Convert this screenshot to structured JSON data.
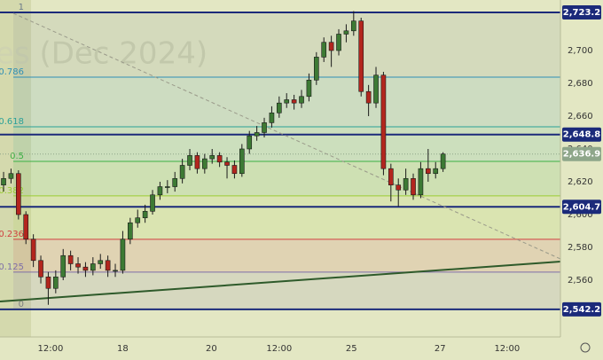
{
  "chart_data": {
    "type": "candlestick",
    "watermark": "es (Dec 2024)",
    "x": [
      0,
      1,
      2,
      3,
      4,
      5,
      6,
      7,
      8,
      9,
      10,
      11,
      12,
      13,
      14,
      15,
      16,
      17,
      18,
      19,
      20,
      21,
      22,
      23,
      24,
      25,
      26,
      27,
      28,
      29,
      30,
      31,
      32,
      33,
      34,
      35,
      36,
      37,
      38,
      39,
      40,
      41,
      42,
      43,
      44,
      45,
      46,
      47,
      48,
      49,
      50,
      51,
      52,
      53,
      54,
      55,
      56,
      57,
      58,
      59
    ],
    "open": [
      2618,
      2622,
      2625,
      2600,
      2585,
      2572,
      2562,
      2555,
      2562,
      2575,
      2570,
      2568,
      2566,
      2570,
      2572,
      2566,
      2566,
      2585,
      2595,
      2598,
      2602,
      2612,
      2617,
      2617,
      2622,
      2630,
      2636,
      2628,
      2634,
      2636,
      2632,
      2630,
      2625,
      2640,
      2648,
      2650,
      2656,
      2662,
      2668,
      2670,
      2668,
      2672,
      2682,
      2696,
      2705,
      2700,
      2710,
      2712,
      2718,
      2675,
      2668,
      2685,
      2628,
      2618,
      2615,
      2622,
      2612,
      2628,
      2625,
      2628
    ],
    "high": [
      2626,
      2628,
      2627,
      2602,
      2588,
      2575,
      2565,
      2566,
      2579,
      2578,
      2574,
      2571,
      2574,
      2576,
      2575,
      2570,
      2590,
      2598,
      2603,
      2606,
      2615,
      2620,
      2621,
      2626,
      2634,
      2640,
      2638,
      2637,
      2640,
      2638,
      2635,
      2633,
      2643,
      2651,
      2654,
      2659,
      2666,
      2672,
      2674,
      2673,
      2676,
      2686,
      2699,
      2708,
      2709,
      2713,
      2716,
      2724,
      2720,
      2679,
      2690,
      2687,
      2631,
      2622,
      2628,
      2625,
      2632,
      2640,
      2632,
      2638
    ],
    "low": [
      2614,
      2619,
      2597,
      2582,
      2568,
      2558,
      2545,
      2552,
      2560,
      2566,
      2564,
      2562,
      2563,
      2567,
      2562,
      2562,
      2564,
      2582,
      2592,
      2595,
      2600,
      2609,
      2613,
      2614,
      2619,
      2627,
      2625,
      2625,
      2631,
      2629,
      2622,
      2622,
      2623,
      2637,
      2645,
      2647,
      2653,
      2659,
      2665,
      2664,
      2665,
      2669,
      2679,
      2693,
      2690,
      2697,
      2705,
      2709,
      2672,
      2660,
      2665,
      2624,
      2608,
      2605,
      2612,
      2609,
      2610,
      2620,
      2622,
      2626
    ],
    "close": [
      2622,
      2625,
      2600,
      2585,
      2572,
      2562,
      2555,
      2562,
      2575,
      2570,
      2568,
      2566,
      2570,
      2572,
      2566,
      2566,
      2585,
      2595,
      2598,
      2602,
      2612,
      2617,
      2617,
      2622,
      2630,
      2636,
      2628,
      2634,
      2636,
      2632,
      2630,
      2625,
      2640,
      2648,
      2650,
      2656,
      2662,
      2668,
      2670,
      2668,
      2672,
      2682,
      2696,
      2705,
      2700,
      2710,
      2712,
      2718,
      2675,
      2668,
      2685,
      2628,
      2618,
      2615,
      2622,
      2612,
      2628,
      2625,
      2628,
      2636.9
    ],
    "up_color": "#3d7a34",
    "down_color": "#b3261e",
    "xlim": [
      -0.48,
      74.76
    ],
    "xticks": [
      {
        "value": 6.3,
        "label": "12:00"
      },
      {
        "value": 16,
        "label": "18"
      },
      {
        "value": 27.9,
        "label": "20"
      },
      {
        "value": 37,
        "label": "12:00"
      },
      {
        "value": 46.7,
        "label": "25"
      },
      {
        "value": 58.6,
        "label": "27"
      },
      {
        "value": 67.6,
        "label": "12:00"
      }
    ],
    "ylim": [
      2525.4,
      2730.8
    ],
    "yticks": [
      {
        "value": 2560,
        "label": "2,560"
      },
      {
        "value": 2580,
        "label": "2,580"
      },
      {
        "value": 2600,
        "label": "2,600"
      },
      {
        "value": 2620,
        "label": "2,620"
      },
      {
        "value": 2640,
        "label": "2,640"
      },
      {
        "value": 2660,
        "label": "2,660"
      },
      {
        "value": 2680,
        "label": "2,680"
      },
      {
        "value": 2700,
        "label": "2,700"
      }
    ],
    "fib_levels": [
      {
        "label": "1",
        "value": 2723.2,
        "color": "#6a7a8a"
      },
      {
        "label": "0.786",
        "value": 2683.8,
        "color": "#2f8fb5"
      },
      {
        "label": "0.618",
        "value": 2653.5,
        "color": "#2aa198"
      },
      {
        "label": "0.5",
        "value": 2632.4,
        "color": "#3cb043"
      },
      {
        "label": "0.382",
        "value": 2611.4,
        "color": "#9acd32"
      },
      {
        "label": "0.236",
        "value": 2584.9,
        "color": "#d04040"
      },
      {
        "label": "0.125",
        "value": 2564.9,
        "color": "#7e6fa8"
      },
      {
        "label": "0",
        "value": 2542.2,
        "color": "#808080"
      }
    ],
    "price_lines": [
      {
        "value": 2723.2,
        "label": "2,723.2"
      },
      {
        "value": 2648.8,
        "label": "2,648.8"
      },
      {
        "value": 2604.7,
        "label": "2,604.7"
      },
      {
        "value": 2542.2,
        "label": "2,542.2"
      }
    ],
    "last_price": {
      "value": 2636.9,
      "label": "2,636.9"
    },
    "price_line_color": "#1b2a7a",
    "last_price_color": "#8ea68a"
  }
}
